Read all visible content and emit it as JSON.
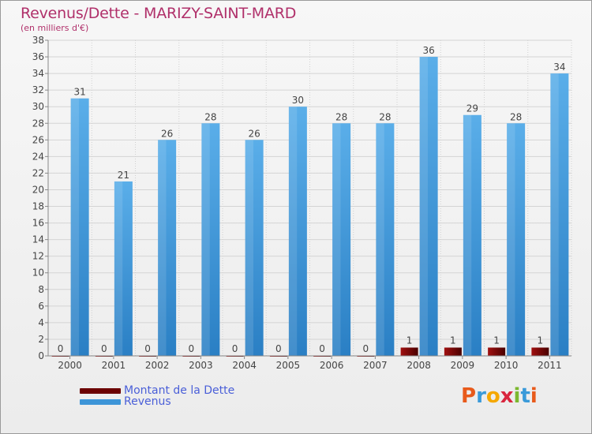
{
  "title": "Revenus/Dette - MARIZY-SAINT-MARD",
  "subtitle": "(en milliers d'€)",
  "colors": {
    "dette": "#6b0000",
    "revenus": "#2f86cc",
    "revenus_light": "#62b2ea"
  },
  "logo": {
    "text": "Proxiti",
    "letters": [
      "P",
      "r",
      "o",
      "x",
      "i",
      "t",
      "i"
    ],
    "colors": [
      "#e85a1b",
      "#3a9ad9",
      "#f5a800",
      "#d9263e",
      "#7cb82f",
      "#3a9ad9",
      "#e85a1b"
    ]
  },
  "chart_data": {
    "type": "bar",
    "categories": [
      "2000",
      "2001",
      "2002",
      "2003",
      "2004",
      "2005",
      "2006",
      "2007",
      "2008",
      "2009",
      "2010",
      "2011"
    ],
    "series": [
      {
        "name": "Montant de la Dette",
        "values": [
          0,
          0,
          0,
          0,
          0,
          0,
          0,
          0,
          1,
          1,
          1,
          1
        ],
        "color": "#6b0000"
      },
      {
        "name": "Revenus",
        "values": [
          31,
          21,
          26,
          28,
          26,
          30,
          28,
          28,
          36,
          29,
          28,
          34
        ],
        "color": "#2f86cc"
      }
    ],
    "ylim": [
      0,
      38
    ],
    "yticks": [
      0,
      2,
      4,
      6,
      8,
      10,
      12,
      14,
      16,
      18,
      20,
      22,
      24,
      26,
      28,
      30,
      32,
      34,
      36,
      38
    ],
    "grid": true,
    "legend": "bottom-left"
  }
}
